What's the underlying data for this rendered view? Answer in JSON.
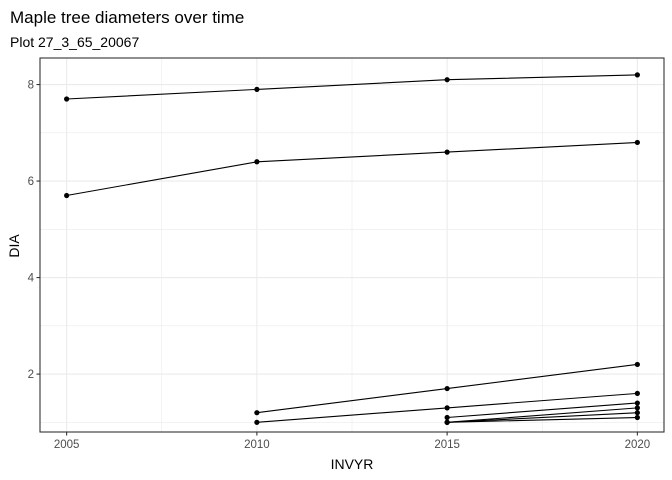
{
  "chart_data": {
    "type": "line",
    "title": "Maple tree diameters over time",
    "subtitle": "Plot 27_3_65_20067",
    "xlabel": "INVYR",
    "ylabel": "DIA",
    "x_ticks": [
      2005,
      2010,
      2015,
      2020
    ],
    "y_ticks": [
      2,
      4,
      6,
      8
    ],
    "xlim": [
      2004.3,
      2020.7
    ],
    "ylim": [
      0.8,
      8.55
    ],
    "grid": true,
    "legend": "none",
    "colors": {
      "line": "#000000",
      "grid": "#ebebeb",
      "panel_border": "#333333"
    },
    "series": [
      {
        "x": [
          2005,
          2010,
          2015,
          2020
        ],
        "y": [
          7.7,
          7.9,
          8.1,
          8.2
        ]
      },
      {
        "x": [
          2005,
          2010,
          2015,
          2020
        ],
        "y": [
          5.7,
          6.4,
          6.6,
          6.8
        ]
      },
      {
        "x": [
          2010,
          2015,
          2020
        ],
        "y": [
          1.2,
          1.7,
          2.2
        ]
      },
      {
        "x": [
          2010,
          2015,
          2020
        ],
        "y": [
          1.0,
          1.3,
          1.6
        ]
      },
      {
        "x": [
          2015,
          2020
        ],
        "y": [
          1.1,
          1.4
        ]
      },
      {
        "x": [
          2015,
          2020
        ],
        "y": [
          1.0,
          1.3
        ]
      },
      {
        "x": [
          2015,
          2020
        ],
        "y": [
          1.0,
          1.2
        ]
      },
      {
        "x": [
          2015,
          2020
        ],
        "y": [
          1.0,
          1.1
        ]
      }
    ]
  }
}
